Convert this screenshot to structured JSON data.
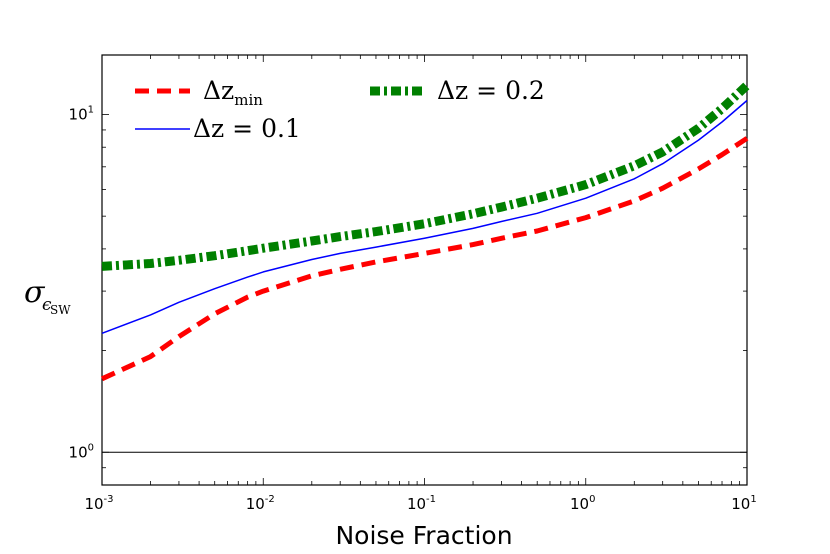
{
  "chart_data": {
    "type": "line",
    "title": "",
    "xlabel": "Noise Fraction",
    "ylabel_symbol": "σ",
    "ylabel_subscript": "ϵ",
    "ylabel_subsubscript": "SW",
    "xscale": "log",
    "yscale": "log",
    "xlim": [
      0.001,
      10
    ],
    "ylim": [
      0.8,
      15
    ],
    "x_ticks": [
      {
        "base": "10",
        "exp": "-3",
        "value": 0.001
      },
      {
        "base": "10",
        "exp": "-2",
        "value": 0.01
      },
      {
        "base": "10",
        "exp": "-1",
        "value": 0.1
      },
      {
        "base": "10",
        "exp": "0",
        "value": 1
      },
      {
        "base": "10",
        "exp": "1",
        "value": 10
      }
    ],
    "y_ticks": [
      {
        "base": "10",
        "exp": "0",
        "value": 1
      },
      {
        "base": "10",
        "exp": "1",
        "value": 10
      }
    ],
    "reference_line": 1,
    "legend_position": "top",
    "series": [
      {
        "name": "Δz_min",
        "label_main": "Δz",
        "label_sub": "min",
        "color": "#ff0000",
        "style": "dashed",
        "x": [
          0.001,
          0.002,
          0.003,
          0.005,
          0.008,
          0.01,
          0.02,
          0.03,
          0.05,
          0.1,
          0.2,
          0.3,
          0.5,
          1,
          2,
          3,
          5,
          7,
          10
        ],
        "values": [
          1.65,
          1.92,
          2.2,
          2.57,
          2.88,
          3.0,
          3.33,
          3.48,
          3.66,
          3.88,
          4.12,
          4.3,
          4.52,
          4.95,
          5.55,
          6.05,
          6.9,
          7.6,
          8.5
        ]
      },
      {
        "name": "Δz=0.1",
        "label_main": "Δz = 0.1",
        "label_sub": "",
        "color": "#0000ff",
        "style": "solid",
        "x": [
          0.001,
          0.002,
          0.003,
          0.005,
          0.008,
          0.01,
          0.02,
          0.03,
          0.05,
          0.1,
          0.2,
          0.3,
          0.5,
          1,
          2,
          3,
          5,
          7,
          10
        ],
        "values": [
          2.25,
          2.55,
          2.78,
          3.05,
          3.3,
          3.42,
          3.72,
          3.88,
          4.05,
          4.3,
          4.6,
          4.82,
          5.1,
          5.65,
          6.45,
          7.15,
          8.4,
          9.5,
          11.0
        ]
      },
      {
        "name": "Δz=0.2",
        "label_main": "Δz = 0.2",
        "label_sub": "",
        "color": "#008000",
        "style": "dashdot",
        "x": [
          0.001,
          0.002,
          0.003,
          0.005,
          0.008,
          0.01,
          0.02,
          0.03,
          0.05,
          0.1,
          0.2,
          0.3,
          0.5,
          1,
          2,
          3,
          5,
          7,
          10
        ],
        "values": [
          3.55,
          3.62,
          3.7,
          3.82,
          3.95,
          4.02,
          4.22,
          4.35,
          4.5,
          4.75,
          5.08,
          5.32,
          5.65,
          6.2,
          7.05,
          7.75,
          9.1,
          10.4,
          12.2
        ]
      }
    ]
  }
}
